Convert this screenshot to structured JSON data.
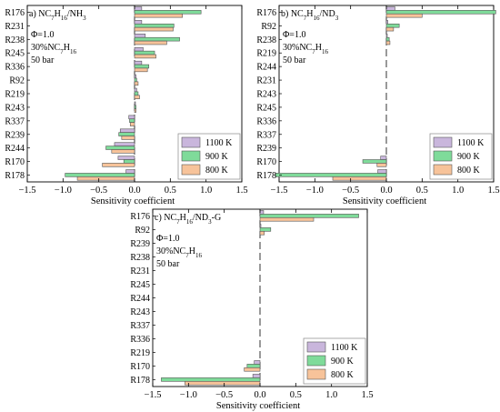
{
  "colors": {
    "1100 K": "#c9b6dc",
    "900 K": "#7fdb9a",
    "800 K": "#f7c39a",
    "bar_edge": "#555555",
    "zero_line": "#333333"
  },
  "chart_data": [
    {
      "type": "bar",
      "orientation": "horizontal",
      "panel_label": "a)",
      "mixture": [
        "NC",
        "7",
        "H",
        "16",
        "/NH",
        "3",
        ""
      ],
      "conditions": [
        "Φ=1.0",
        "30%NC7H16",
        "50 bar"
      ],
      "xlabel": "Sensitivity coefficient",
      "xlim": [
        -1.5,
        1.5
      ],
      "xticks": [
        "−1.5",
        "−1.0",
        "−0.5",
        "0.0",
        "0.5",
        "1.0",
        "1.5"
      ],
      "tick_values": [
        -1.5,
        -1.0,
        -0.5,
        0.0,
        0.5,
        1.0,
        1.5
      ],
      "categories": [
        "R176",
        "R231",
        "R238",
        "R245",
        "R336",
        "R92",
        "R219",
        "R243",
        "R337",
        "R239",
        "R244",
        "R170",
        "R178"
      ],
      "series": [
        {
          "name": "1100 K",
          "values": [
            0.1,
            0.1,
            0.15,
            0.12,
            0.1,
            0.02,
            0.03,
            0.01,
            -0.08,
            -0.2,
            -0.28,
            -0.23,
            -0.12
          ]
        },
        {
          "name": "900 K",
          "values": [
            0.93,
            0.55,
            0.63,
            0.28,
            0.2,
            0.03,
            0.05,
            0.02,
            -0.07,
            -0.22,
            -0.4,
            -0.15,
            -0.97
          ]
        },
        {
          "name": "800 K",
          "values": [
            0.67,
            0.54,
            0.45,
            0.3,
            0.18,
            0.05,
            0.07,
            0.02,
            -0.06,
            -0.18,
            -0.32,
            -0.45,
            -0.8
          ]
        }
      ],
      "legend": {
        "position": "bottom-right",
        "entries": [
          "1100 K",
          "900 K",
          "800 K"
        ]
      },
      "grid": false
    },
    {
      "type": "bar",
      "orientation": "horizontal",
      "panel_label": "b)",
      "mixture": [
        "NC",
        "7",
        "H",
        "16",
        "/ND",
        "3",
        ""
      ],
      "conditions": [
        "Φ=1.0",
        "30%NC7H16",
        "50 bar"
      ],
      "xlabel": "Sensitivity coefficient",
      "xlim": [
        -1.5,
        1.5
      ],
      "xticks": [
        "−1.5",
        "−1.0",
        "−0.5",
        "0.0",
        "0.5",
        "1.0",
        "1.5"
      ],
      "tick_values": [
        -1.5,
        -1.0,
        -0.5,
        0.0,
        0.5,
        1.0,
        1.5
      ],
      "categories": [
        "R176",
        "R92",
        "R238",
        "R219",
        "R244",
        "R231",
        "R243",
        "R245",
        "R336",
        "R337",
        "R239",
        "R170",
        "R178"
      ],
      "series": [
        {
          "name": "1100 K",
          "values": [
            0.12,
            0.02,
            0.01,
            0.0,
            0.0,
            0.0,
            0.0,
            0.0,
            0.0,
            0.0,
            0.0,
            -0.08,
            -0.12
          ]
        },
        {
          "name": "900 K",
          "values": [
            1.53,
            0.18,
            0.04,
            0.0,
            0.0,
            0.0,
            0.0,
            0.0,
            0.0,
            0.0,
            0.0,
            -0.33,
            -1.55
          ]
        },
        {
          "name": "800 K",
          "values": [
            0.5,
            0.1,
            0.05,
            0.0,
            0.0,
            0.0,
            0.0,
            0.0,
            0.0,
            0.0,
            0.0,
            -0.13,
            -0.75
          ]
        }
      ],
      "legend": {
        "position": "bottom-right",
        "entries": [
          "1100 K",
          "900 K",
          "800 K"
        ]
      },
      "grid": false
    },
    {
      "type": "bar",
      "orientation": "horizontal",
      "panel_label": "c)",
      "mixture": [
        "NC",
        "7",
        "H",
        "16",
        "/ND",
        "3",
        "-G"
      ],
      "conditions": [
        "Φ=1.0",
        "30%NC7H16",
        "50 bar"
      ],
      "xlabel": "Sensitivity coefficient",
      "xlim": [
        -1.5,
        1.5
      ],
      "xticks": [
        "−1.5",
        "−1.0",
        "−0.5",
        "0.0",
        "0.5",
        "1.0",
        "1.5"
      ],
      "tick_values": [
        -1.5,
        -1.0,
        -0.5,
        0.0,
        0.5,
        1.0,
        1.5
      ],
      "categories": [
        "R176",
        "R92",
        "R239",
        "R238",
        "R231",
        "R245",
        "R244",
        "R243",
        "R337",
        "R336",
        "R219",
        "R170",
        "R178"
      ],
      "series": [
        {
          "name": "1100 K",
          "values": [
            0.05,
            0.01,
            0.0,
            0.0,
            0.0,
            0.0,
            0.0,
            0.0,
            0.0,
            0.0,
            0.0,
            -0.08,
            -0.1
          ]
        },
        {
          "name": "900 K",
          "values": [
            1.38,
            0.15,
            0.0,
            0.0,
            0.0,
            0.0,
            0.0,
            0.0,
            0.0,
            0.0,
            0.0,
            -0.18,
            -1.38
          ]
        },
        {
          "name": "800 K",
          "values": [
            0.75,
            0.06,
            0.0,
            0.0,
            0.0,
            0.0,
            0.0,
            0.0,
            0.0,
            0.0,
            0.0,
            -0.22,
            -1.05
          ]
        }
      ],
      "legend": {
        "position": "bottom-right",
        "entries": [
          "1100 K",
          "900 K",
          "800 K"
        ]
      },
      "grid": false
    }
  ]
}
